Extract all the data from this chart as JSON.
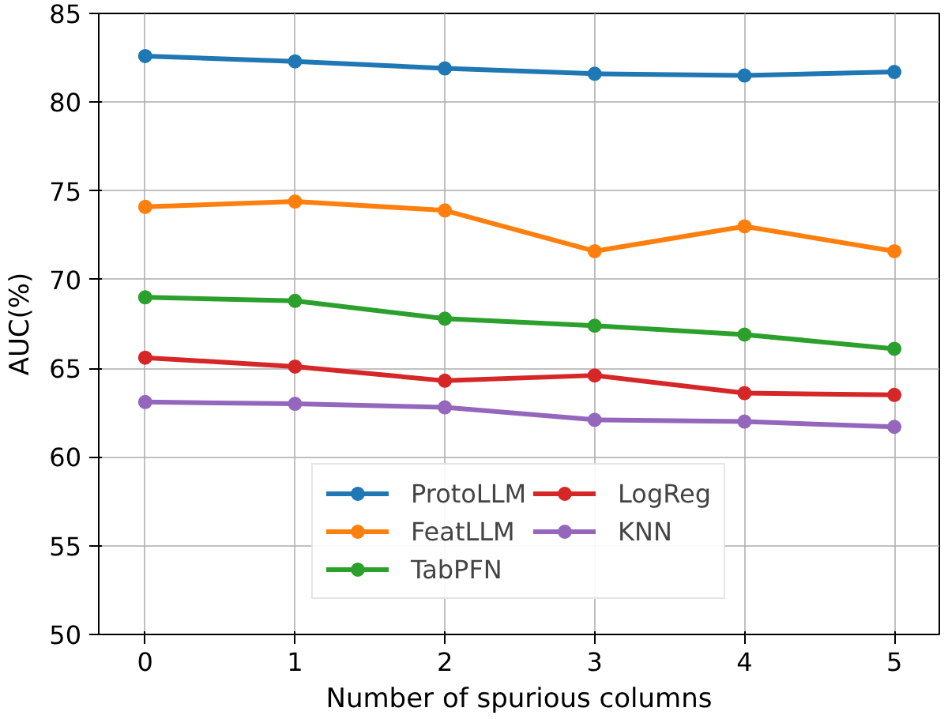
{
  "chart_data": {
    "type": "line",
    "xlabel": "Number of spurious columns",
    "ylabel": "AUC(%)",
    "x": [
      0,
      1,
      2,
      3,
      4,
      5
    ],
    "xlim": [
      -0.31,
      5.3
    ],
    "xticks": [
      0,
      1,
      2,
      3,
      4,
      5
    ],
    "ylim": [
      50,
      85
    ],
    "yticks": [
      50,
      55,
      60,
      65,
      70,
      75,
      80,
      85
    ],
    "grid": true,
    "legend": "bottom",
    "marker": "circle",
    "line_style": "solid",
    "series": [
      {
        "name": "ProtoLLM",
        "color": "#1f77b4",
        "values": [
          82.6,
          82.3,
          81.9,
          81.6,
          81.5,
          81.7
        ]
      },
      {
        "name": "FeatLLM",
        "color": "#ff7f0e",
        "values": [
          74.1,
          74.4,
          73.9,
          71.6,
          73.0,
          71.6
        ]
      },
      {
        "name": "TabPFN",
        "color": "#2ca02c",
        "values": [
          69.0,
          68.8,
          67.8,
          67.4,
          66.9,
          66.1
        ]
      },
      {
        "name": "LogReg",
        "color": "#d62728",
        "values": [
          65.6,
          65.1,
          64.3,
          64.6,
          63.6,
          63.5
        ]
      },
      {
        "name": "KNN",
        "color": "#9467bd",
        "values": [
          63.1,
          63.0,
          62.8,
          62.1,
          62.0,
          61.7
        ]
      }
    ]
  }
}
